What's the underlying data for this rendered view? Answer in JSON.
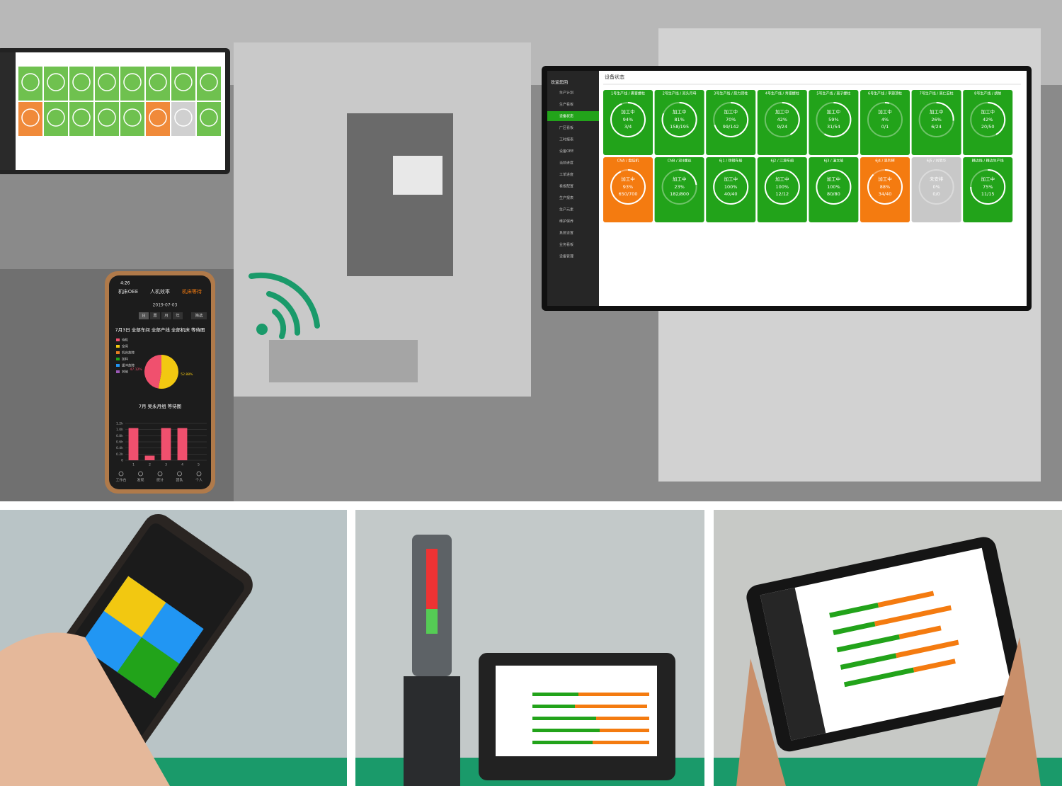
{
  "dashboard": {
    "welcome": "欢迎您回",
    "title": "设备状态",
    "menu": [
      "生产计划",
      "生产看板",
      "设备状态",
      "厂区看板",
      "工时报表",
      "设备OEE",
      "当前进度",
      "工单进度",
      "看板配置",
      "生产报表",
      "生产元素",
      "维护保养",
      "系统设置",
      "业务看板",
      "设备管理"
    ],
    "tiles": [
      {
        "header": "1号生产线 / 裹膏螺柱",
        "status": "加工中",
        "value": 94,
        "value_label": "94%",
        "count": "3/4",
        "color": "#22a31a"
      },
      {
        "header": "2号生产线 / 双头月母",
        "status": "加工中",
        "value": 81,
        "value_label": "81%",
        "count": "158/195",
        "color": "#22a31a"
      },
      {
        "header": "3号生产线 / 原力顶柱",
        "status": "加工中",
        "value": 70,
        "value_label": "70%",
        "count": "99/142",
        "color": "#22a31a"
      },
      {
        "header": "4号生产线 / 青德螺柱",
        "status": "加工中",
        "value": 42,
        "value_label": "42%",
        "count": "9/24",
        "color": "#22a31a"
      },
      {
        "header": "5号生产线 / 离子螺柱",
        "status": "加工中",
        "value": 59,
        "value_label": "59%",
        "count": "31/54",
        "color": "#22a31a"
      },
      {
        "header": "6号生产线 / 李源顶柱",
        "status": "加工中",
        "value": 4,
        "value_label": "4%",
        "count": "0/1",
        "color": "#22a31a"
      },
      {
        "header": "7号生产线 / 吴仁宏柱",
        "status": "加工中",
        "value": 26,
        "value_label": "26%",
        "count": "6/24",
        "color": "#22a31a"
      },
      {
        "header": "8号生产线 / 胡前",
        "status": "加工中",
        "value": 42,
        "value_label": "42%",
        "count": "20/50",
        "color": "#22a31a"
      },
      {
        "header": "CNA / 盘结机",
        "status": "加工中",
        "value": 93,
        "value_label": "93%",
        "count": "650/700",
        "color": "#f47b10"
      },
      {
        "header": "CNB / 双4螺丝",
        "status": "加工中",
        "value": 23,
        "value_label": "23%",
        "count": "182/800",
        "color": "#22a31a"
      },
      {
        "header": "6j1 / 铁钢车船",
        "status": "加工中",
        "value": 100,
        "value_label": "100%",
        "count": "40/40",
        "color": "#22a31a"
      },
      {
        "header": "6j2 / 江源车船",
        "status": "加工中",
        "value": 100,
        "value_label": "100%",
        "count": "12/12",
        "color": "#22a31a"
      },
      {
        "header": "6j3 / 温文船",
        "status": "加工中",
        "value": 100,
        "value_label": "100%",
        "count": "80/80",
        "color": "#22a31a"
      },
      {
        "header": "6j4 / 吴利辉",
        "status": "加工中",
        "value": 88,
        "value_label": "88%",
        "count": "34/40",
        "color": "#f47b10"
      },
      {
        "header": "6j5 / 刘明华",
        "status": "未安排",
        "value": 0,
        "value_label": "0%",
        "count": "0/0",
        "color": "#c8c8c8"
      },
      {
        "header": "精边线 / 精边生产线",
        "status": "加工中",
        "value": 75,
        "value_label": "75%",
        "count": "11/15",
        "color": "#22a31a"
      }
    ]
  },
  "phone": {
    "time": "4:26",
    "tabs": [
      "机床OEE",
      "人机效率",
      "机床等待"
    ],
    "date": "2019-07-03",
    "periods": [
      "日",
      "周",
      "月",
      "年"
    ],
    "filter": "筛选",
    "pie": {
      "type": "pie",
      "title": "7月3日 全部车间 全部产线 全部机床 等待图",
      "legend": [
        "待机",
        "空闲",
        "机床故障",
        "加料",
        "缓冲故障",
        "其他"
      ],
      "values": [
        52.88,
        47.12
      ],
      "value_labels": [
        "52.88%",
        "47.12%"
      ],
      "colors": [
        "#f2c811",
        "#f0506e"
      ]
    },
    "bar": {
      "type": "bar",
      "title": "7月 吴永月组 等待图",
      "categories": [
        "1",
        "2",
        "3",
        "4",
        "5"
      ],
      "values": [
        1.05,
        0.15,
        1.05,
        1.05,
        0
      ],
      "color": "#f0506e",
      "ylim": [
        0,
        1.2
      ],
      "yticks": [
        {
          "value": 0,
          "label": "0"
        },
        {
          "value": 0.2,
          "label": "0.2h"
        },
        {
          "value": 0.4,
          "label": "0.4h"
        },
        {
          "value": 0.6,
          "label": "0.6h"
        },
        {
          "value": 0.8,
          "label": "0.8h"
        },
        {
          "value": 1.0,
          "label": "1.0h"
        },
        {
          "value": 1.2,
          "label": "1.2h"
        }
      ]
    },
    "nav": [
      "工作台",
      "发现",
      "统计",
      "团队",
      "个人"
    ]
  }
}
